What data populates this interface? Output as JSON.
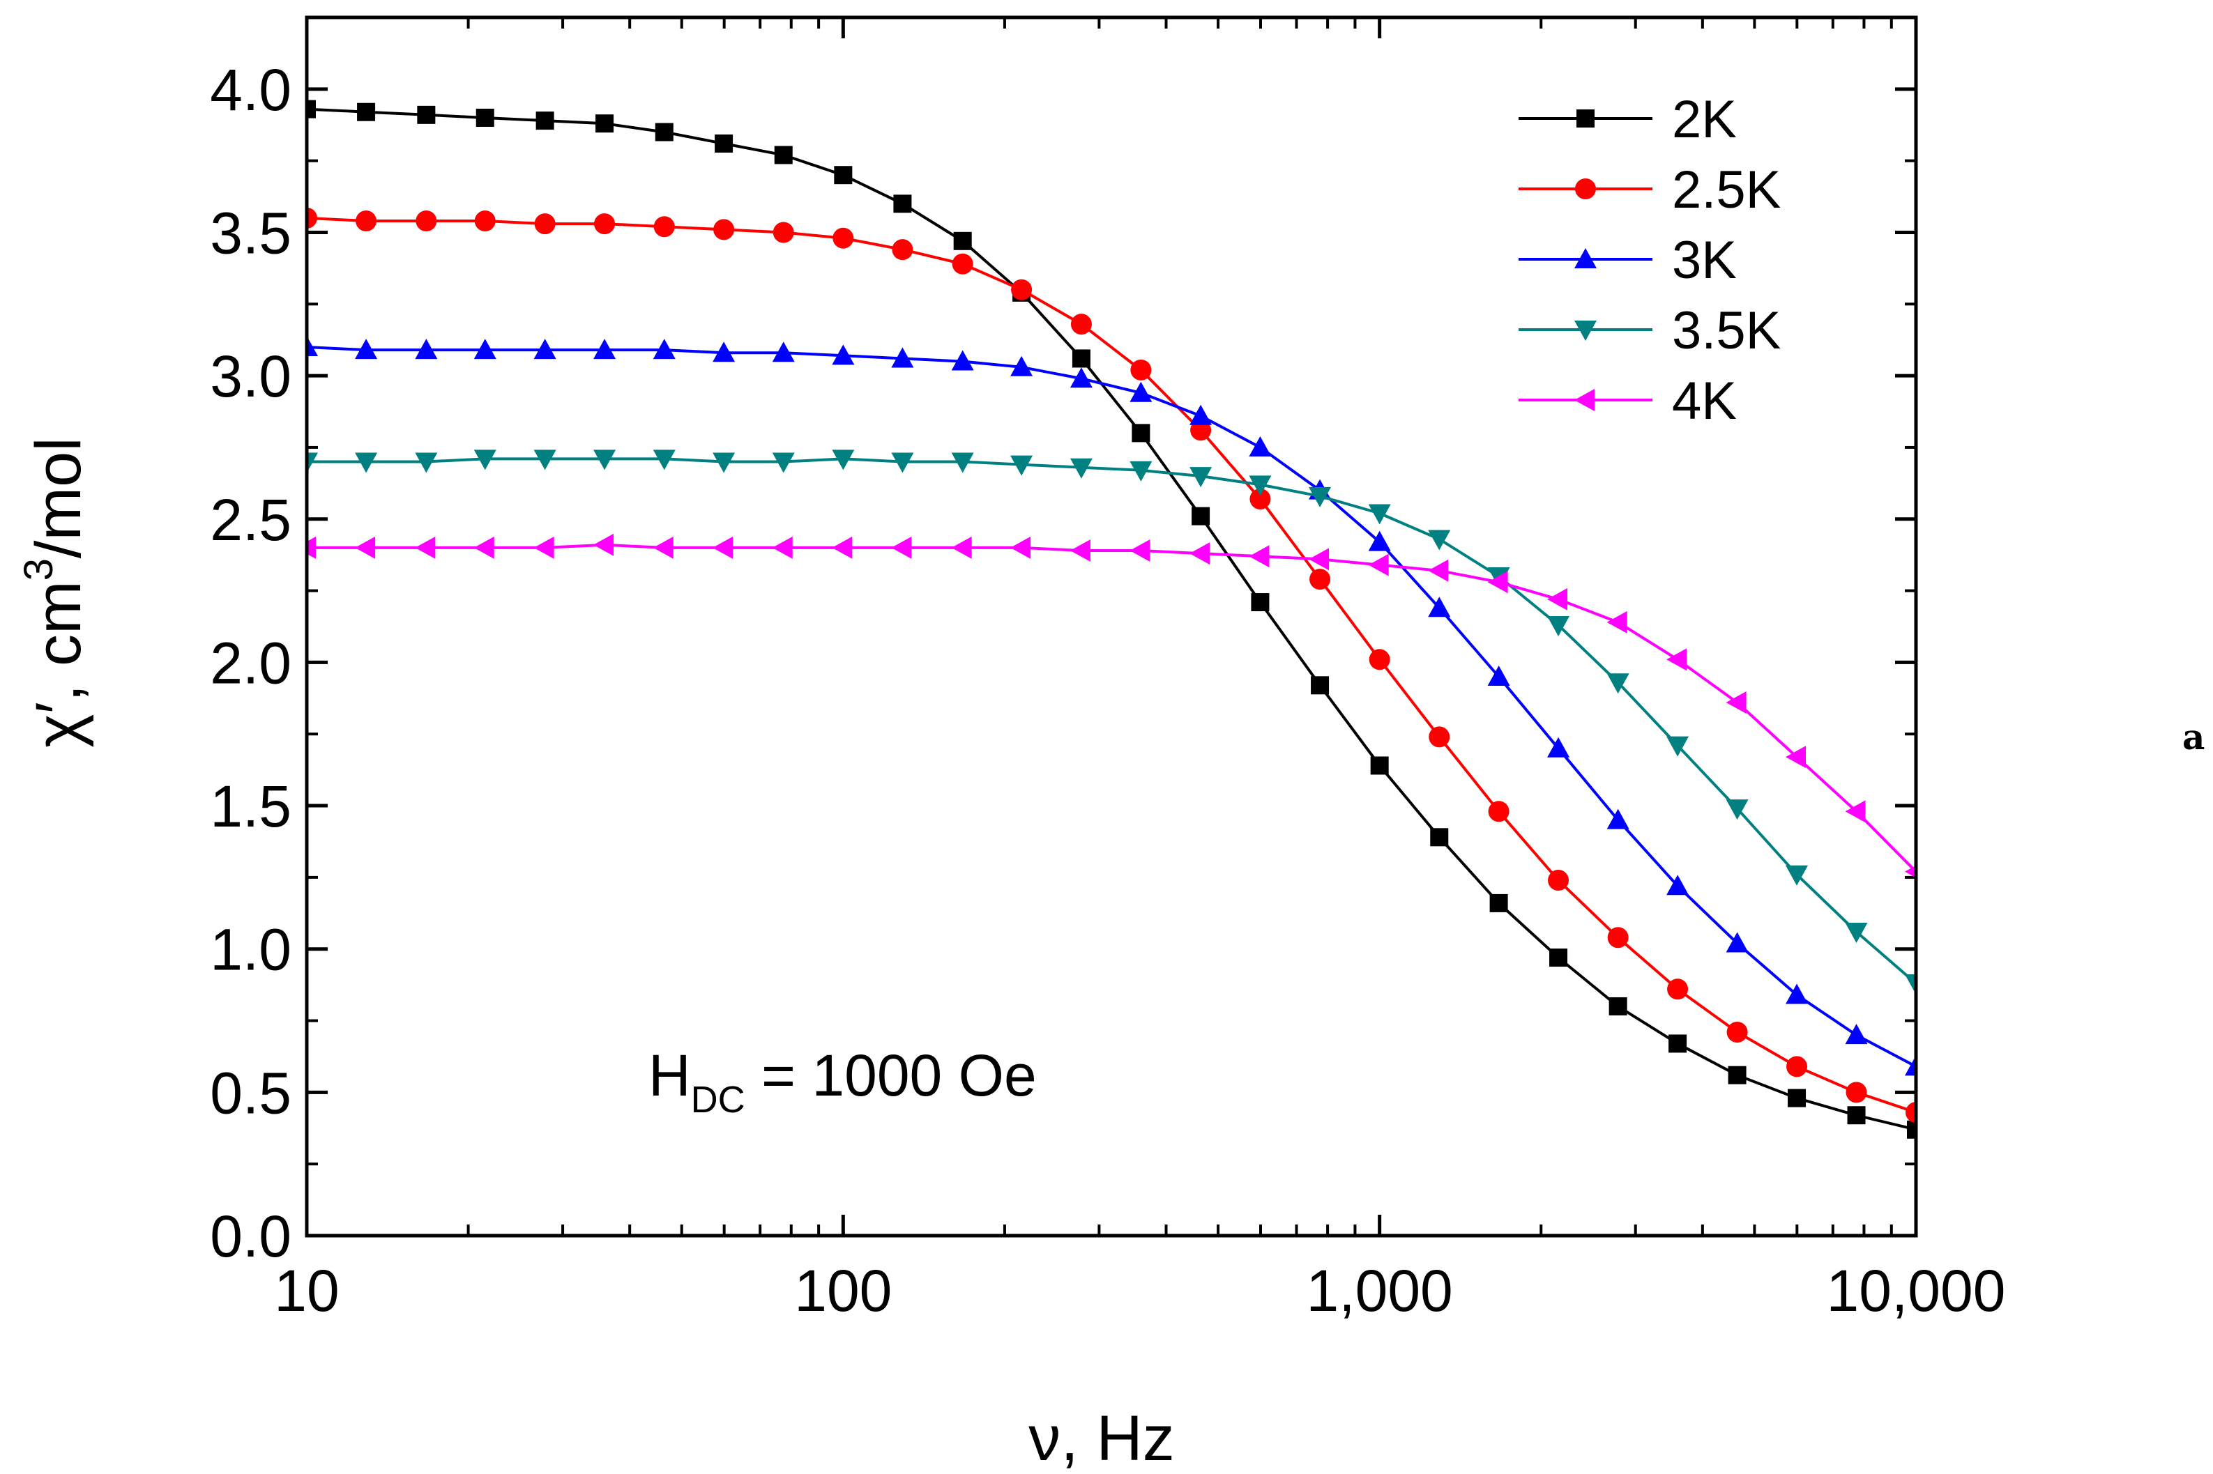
{
  "chart_data": {
    "type": "line",
    "title": "",
    "xlabel": "ν, Hz",
    "ylabel_main": "χ′, cm",
    "ylabel_sup": "3",
    "ylabel_tail": "/mol",
    "xscale": "log",
    "xlim": [
      10,
      10000
    ],
    "ylim": [
      0.0,
      4.25
    ],
    "grid": false,
    "legend_position": "top-right",
    "x_tick_labels": [
      "10",
      "100",
      "1,000",
      "10,000"
    ],
    "y_tick_labels": [
      "0.0",
      "0.5",
      "1.0",
      "1.5",
      "2.0",
      "2.5",
      "3.0",
      "3.5",
      "4.0"
    ],
    "annotation": {
      "main": "H",
      "sub": "DC",
      "tail": " = 1000 Oe"
    },
    "panel_label": "a",
    "x": [
      10,
      12.9,
      16.7,
      21.5,
      27.8,
      35.9,
      46.4,
      59.9,
      77.4,
      100,
      129,
      167,
      215,
      278,
      359,
      464,
      599,
      774,
      1000,
      1292,
      1668,
      2154,
      2783,
      3594,
      4642,
      5995,
      7743,
      10000
    ],
    "series": [
      {
        "name": "2K",
        "color": "#000000",
        "marker": "square",
        "values": [
          3.93,
          3.92,
          3.91,
          3.9,
          3.89,
          3.88,
          3.85,
          3.81,
          3.77,
          3.7,
          3.6,
          3.47,
          3.29,
          3.06,
          2.8,
          2.51,
          2.21,
          1.92,
          1.64,
          1.39,
          1.16,
          0.97,
          0.8,
          0.67,
          0.56,
          0.48,
          0.42,
          0.37
        ]
      },
      {
        "name": "2.5K",
        "color": "#ff0000",
        "marker": "circle",
        "values": [
          3.55,
          3.54,
          3.54,
          3.54,
          3.53,
          3.53,
          3.52,
          3.51,
          3.5,
          3.48,
          3.44,
          3.39,
          3.3,
          3.18,
          3.02,
          2.81,
          2.57,
          2.29,
          2.01,
          1.74,
          1.48,
          1.24,
          1.04,
          0.86,
          0.71,
          0.59,
          0.5,
          0.43
        ]
      },
      {
        "name": "3K",
        "color": "#0000ff",
        "marker": "triangle-up",
        "values": [
          3.1,
          3.09,
          3.09,
          3.09,
          3.09,
          3.09,
          3.09,
          3.08,
          3.08,
          3.07,
          3.06,
          3.05,
          3.03,
          2.99,
          2.94,
          2.86,
          2.75,
          2.6,
          2.42,
          2.19,
          1.95,
          1.7,
          1.45,
          1.22,
          1.02,
          0.84,
          0.7,
          0.59
        ]
      },
      {
        "name": "3.5K",
        "color": "#008080",
        "marker": "triangle-down",
        "values": [
          2.7,
          2.7,
          2.7,
          2.71,
          2.71,
          2.71,
          2.71,
          2.7,
          2.7,
          2.71,
          2.7,
          2.7,
          2.69,
          2.68,
          2.67,
          2.65,
          2.62,
          2.58,
          2.52,
          2.43,
          2.3,
          2.13,
          1.93,
          1.71,
          1.49,
          1.26,
          1.06,
          0.88
        ]
      },
      {
        "name": "4K",
        "color": "#ff00ff",
        "marker": "triangle-left",
        "values": [
          2.4,
          2.4,
          2.4,
          2.4,
          2.4,
          2.41,
          2.4,
          2.4,
          2.4,
          2.4,
          2.4,
          2.4,
          2.4,
          2.39,
          2.39,
          2.38,
          2.37,
          2.36,
          2.34,
          2.32,
          2.28,
          2.22,
          2.14,
          2.01,
          1.86,
          1.67,
          1.48,
          1.27
        ]
      }
    ]
  }
}
